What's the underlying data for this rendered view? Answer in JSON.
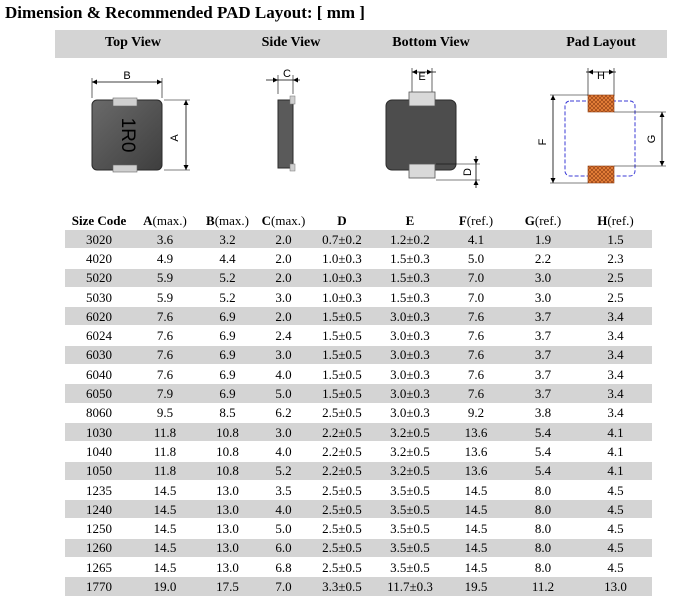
{
  "title": "Dimension & Recommended PAD Layout: [ mm ]",
  "views": {
    "top_view": "Top View",
    "side_view": "Side View",
    "bottom_view": "Bottom View",
    "pad_layout": "Pad Layout"
  },
  "diagram_labels": {
    "top_a": "A",
    "top_b": "B",
    "top_marking": "1R0",
    "side_c": "C",
    "bottom_e": "E",
    "bottom_d": "D",
    "pad_h": "H",
    "pad_f": "F",
    "pad_g": "G"
  },
  "colors": {
    "header_band": "#d4d4d4",
    "body_fill": "#555555",
    "pad_orange": "#e8813a",
    "outline_blue": "#3b3bd6"
  },
  "table": {
    "headers": [
      {
        "main": "Size Code",
        "paren": ""
      },
      {
        "main": "A",
        "paren": "(max.)"
      },
      {
        "main": "B",
        "paren": "(max.)"
      },
      {
        "main": "C",
        "paren": "(max.)"
      },
      {
        "main": "D",
        "paren": ""
      },
      {
        "main": "E",
        "paren": ""
      },
      {
        "main": "F",
        "paren": "(ref.)"
      },
      {
        "main": "G",
        "paren": "(ref.)"
      },
      {
        "main": "H",
        "paren": "(ref.)"
      }
    ],
    "rows": [
      [
        "3020",
        "3.6",
        "3.2",
        "2.0",
        "0.7±0.2",
        "1.2±0.2",
        "4.1",
        "1.9",
        "1.5"
      ],
      [
        "4020",
        "4.9",
        "4.4",
        "2.0",
        "1.0±0.3",
        "1.5±0.3",
        "5.0",
        "2.2",
        "2.3"
      ],
      [
        "5020",
        "5.9",
        "5.2",
        "2.0",
        "1.0±0.3",
        "1.5±0.3",
        "7.0",
        "3.0",
        "2.5"
      ],
      [
        "5030",
        "5.9",
        "5.2",
        "3.0",
        "1.0±0.3",
        "1.5±0.3",
        "7.0",
        "3.0",
        "2.5"
      ],
      [
        "6020",
        "7.6",
        "6.9",
        "2.0",
        "1.5±0.5",
        "3.0±0.3",
        "7.6",
        "3.7",
        "3.4"
      ],
      [
        "6024",
        "7.6",
        "6.9",
        "2.4",
        "1.5±0.5",
        "3.0±0.3",
        "7.6",
        "3.7",
        "3.4"
      ],
      [
        "6030",
        "7.6",
        "6.9",
        "3.0",
        "1.5±0.5",
        "3.0±0.3",
        "7.6",
        "3.7",
        "3.4"
      ],
      [
        "6040",
        "7.6",
        "6.9",
        "4.0",
        "1.5±0.5",
        "3.0±0.3",
        "7.6",
        "3.7",
        "3.4"
      ],
      [
        "6050",
        "7.9",
        "6.9",
        "5.0",
        "1.5±0.5",
        "3.0±0.3",
        "7.6",
        "3.7",
        "3.4"
      ],
      [
        "8060",
        "9.5",
        "8.5",
        "6.2",
        "2.5±0.5",
        "3.0±0.3",
        "9.2",
        "3.8",
        "3.4"
      ],
      [
        "1030",
        "11.8",
        "10.8",
        "3.0",
        "2.2±0.5",
        "3.2±0.5",
        "13.6",
        "5.4",
        "4.1"
      ],
      [
        "1040",
        "11.8",
        "10.8",
        "4.0",
        "2.2±0.5",
        "3.2±0.5",
        "13.6",
        "5.4",
        "4.1"
      ],
      [
        "1050",
        "11.8",
        "10.8",
        "5.2",
        "2.2±0.5",
        "3.2±0.5",
        "13.6",
        "5.4",
        "4.1"
      ],
      [
        "1235",
        "14.5",
        "13.0",
        "3.5",
        "2.5±0.5",
        "3.5±0.5",
        "14.5",
        "8.0",
        "4.5"
      ],
      [
        "1240",
        "14.5",
        "13.0",
        "4.0",
        "2.5±0.5",
        "3.5±0.5",
        "14.5",
        "8.0",
        "4.5"
      ],
      [
        "1250",
        "14.5",
        "13.0",
        "5.0",
        "2.5±0.5",
        "3.5±0.5",
        "14.5",
        "8.0",
        "4.5"
      ],
      [
        "1260",
        "14.5",
        "13.0",
        "6.0",
        "2.5±0.5",
        "3.5±0.5",
        "14.5",
        "8.0",
        "4.5"
      ],
      [
        "1265",
        "14.5",
        "13.0",
        "6.8",
        "2.5±0.5",
        "3.5±0.5",
        "14.5",
        "8.0",
        "4.5"
      ],
      [
        "1770",
        "19.0",
        "17.5",
        "7.0",
        "3.3±0.5",
        "11.7±0.3",
        "19.5",
        "11.2",
        "13.0"
      ]
    ]
  }
}
